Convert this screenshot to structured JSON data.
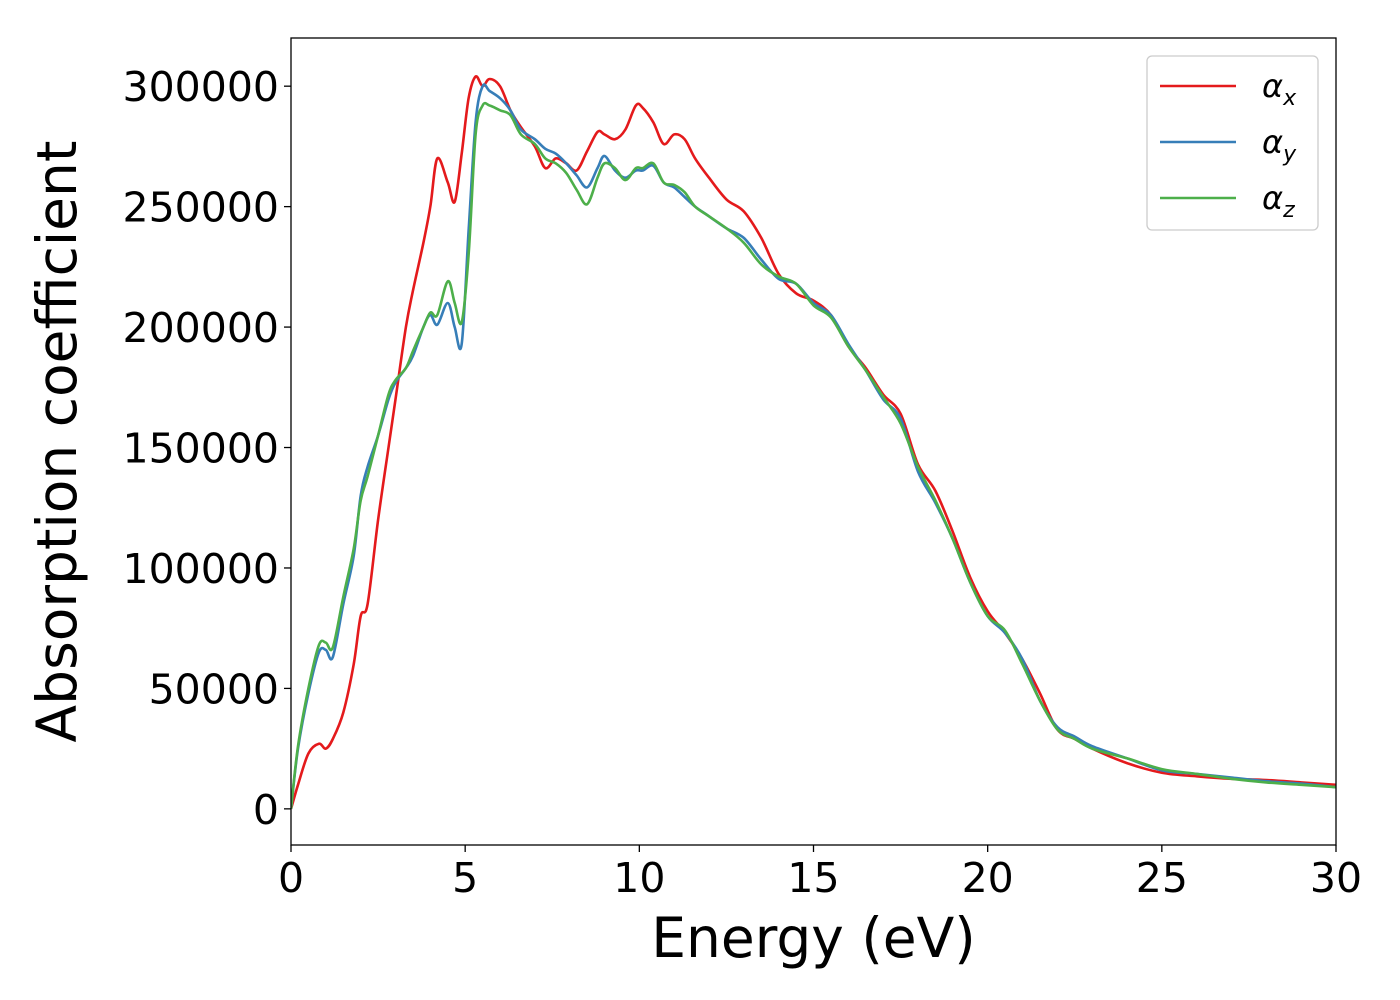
{
  "chart_data": {
    "type": "line",
    "xlabel": "Energy (eV)",
    "ylabel": "Absorption coefficient",
    "xlim": [
      0,
      30
    ],
    "ylim": [
      -15000,
      320000
    ],
    "xticks": [
      0,
      5,
      10,
      15,
      20,
      25,
      30
    ],
    "yticks": [
      0,
      50000,
      100000,
      150000,
      200000,
      250000,
      300000
    ],
    "xtick_labels": [
      "0",
      "5",
      "10",
      "15",
      "20",
      "25",
      "30"
    ],
    "ytick_labels": [
      "0",
      "50000",
      "100000",
      "150000",
      "200000",
      "250000",
      "300000"
    ],
    "grid": false,
    "legend_position": "top-right",
    "series": [
      {
        "name": "α_x",
        "label_main": "α",
        "label_sub": "x",
        "color": "#e41a1c",
        "x": [
          0,
          0.2,
          0.5,
          0.8,
          1.0,
          1.2,
          1.5,
          1.8,
          2.0,
          2.2,
          2.5,
          2.8,
          3.0,
          3.3,
          3.5,
          3.8,
          4.0,
          4.2,
          4.5,
          4.7,
          4.9,
          5.1,
          5.3,
          5.5,
          5.7,
          6.0,
          6.3,
          6.6,
          7.0,
          7.3,
          7.6,
          7.9,
          8.2,
          8.5,
          8.8,
          9.0,
          9.3,
          9.6,
          9.9,
          10.1,
          10.4,
          10.7,
          11.0,
          11.3,
          11.6,
          12.0,
          12.5,
          13.0,
          13.5,
          14.0,
          14.5,
          15.0,
          15.5,
          16.0,
          16.5,
          17.0,
          17.5,
          18.0,
          18.5,
          19.0,
          19.5,
          20.0,
          20.5,
          21.0,
          21.5,
          22.0,
          22.5,
          23.0,
          24.0,
          25.0,
          26.0,
          27.0,
          28.0,
          29.0,
          30.0
        ],
        "y": [
          0,
          10000,
          23000,
          27000,
          25000,
          29000,
          40000,
          60000,
          80000,
          85000,
          120000,
          150000,
          170000,
          200000,
          215000,
          235000,
          250000,
          270000,
          260000,
          252000,
          272000,
          295000,
          304000,
          300000,
          303000,
          300000,
          290000,
          283000,
          275000,
          266000,
          270000,
          268000,
          265000,
          273000,
          281000,
          280000,
          278000,
          282000,
          292000,
          291000,
          285000,
          276000,
          280000,
          278000,
          270000,
          262000,
          253000,
          248000,
          237000,
          222000,
          214000,
          211000,
          205000,
          192000,
          183000,
          172000,
          164000,
          143000,
          132000,
          115000,
          96000,
          82000,
          73000,
          62000,
          48000,
          33000,
          29000,
          25000,
          19000,
          15000,
          13500,
          12500,
          12000,
          11000,
          10000
        ]
      },
      {
        "name": "α_y",
        "label_main": "α",
        "label_sub": "y",
        "color": "#377eb8",
        "x": [
          0,
          0.2,
          0.5,
          0.8,
          1.0,
          1.2,
          1.5,
          1.8,
          2.0,
          2.2,
          2.5,
          2.8,
          3.0,
          3.3,
          3.5,
          3.8,
          4.0,
          4.2,
          4.5,
          4.7,
          4.9,
          5.1,
          5.3,
          5.5,
          5.7,
          6.0,
          6.3,
          6.6,
          7.0,
          7.3,
          7.6,
          7.9,
          8.2,
          8.5,
          8.8,
          9.0,
          9.3,
          9.6,
          9.9,
          10.1,
          10.4,
          10.7,
          11.0,
          11.3,
          11.6,
          12.0,
          12.5,
          13.0,
          13.5,
          14.0,
          14.5,
          15.0,
          15.5,
          16.0,
          16.5,
          17.0,
          17.5,
          18.0,
          18.5,
          19.0,
          19.5,
          20.0,
          20.5,
          21.0,
          21.5,
          22.0,
          22.5,
          23.0,
          24.0,
          25.0,
          26.0,
          27.0,
          28.0,
          29.0,
          30.0
        ],
        "y": [
          0,
          25000,
          48000,
          65000,
          66000,
          63000,
          85000,
          105000,
          130000,
          142000,
          155000,
          170000,
          177000,
          183000,
          188000,
          200000,
          205000,
          201000,
          210000,
          200000,
          193000,
          240000,
          285000,
          300000,
          298000,
          295000,
          290000,
          282000,
          278000,
          274000,
          272000,
          268000,
          263000,
          258000,
          266000,
          271000,
          265000,
          262000,
          265000,
          265000,
          267000,
          260000,
          258000,
          254000,
          250000,
          246000,
          241000,
          237000,
          228000,
          220000,
          218000,
          210000,
          205000,
          193000,
          182000,
          170000,
          162000,
          140000,
          127000,
          112000,
          94000,
          80000,
          73000,
          62000,
          45000,
          34000,
          30000,
          26000,
          21000,
          16000,
          14500,
          13000,
          11500,
          10500,
          9000
        ]
      },
      {
        "name": "α_z",
        "label_main": "α",
        "label_sub": "z",
        "color": "#4daf4a",
        "x": [
          0,
          0.2,
          0.5,
          0.8,
          1.0,
          1.2,
          1.5,
          1.8,
          2.0,
          2.2,
          2.5,
          2.8,
          3.0,
          3.3,
          3.5,
          3.8,
          4.0,
          4.2,
          4.5,
          4.7,
          4.9,
          5.1,
          5.3,
          5.5,
          5.7,
          6.0,
          6.3,
          6.6,
          7.0,
          7.3,
          7.6,
          7.9,
          8.2,
          8.5,
          8.8,
          9.0,
          9.3,
          9.6,
          9.9,
          10.1,
          10.4,
          10.7,
          11.0,
          11.3,
          11.6,
          12.0,
          12.5,
          13.0,
          13.5,
          14.0,
          14.5,
          15.0,
          15.5,
          16.0,
          16.5,
          17.0,
          17.5,
          18.0,
          18.5,
          19.0,
          19.5,
          20.0,
          20.5,
          21.0,
          21.5,
          22.0,
          22.5,
          23.0,
          24.0,
          25.0,
          26.0,
          27.0,
          28.0,
          29.0,
          30.0
        ],
        "y": [
          0,
          26000,
          50000,
          68000,
          69000,
          67000,
          88000,
          108000,
          128000,
          138000,
          155000,
          172000,
          178000,
          183000,
          190000,
          200000,
          206000,
          205000,
          219000,
          210000,
          202000,
          230000,
          280000,
          292000,
          292000,
          290000,
          288000,
          280000,
          276000,
          270000,
          268000,
          264000,
          257000,
          251000,
          262000,
          268000,
          266000,
          261000,
          266000,
          266000,
          268000,
          260000,
          259000,
          256000,
          250000,
          246000,
          241000,
          235000,
          226000,
          221000,
          218000,
          209000,
          204000,
          192000,
          182000,
          171000,
          160000,
          142000,
          128000,
          112000,
          94000,
          80000,
          74000,
          60000,
          45000,
          33000,
          29000,
          25000,
          21000,
          16500,
          14500,
          12500,
          11000,
          10000,
          9000
        ]
      }
    ]
  }
}
